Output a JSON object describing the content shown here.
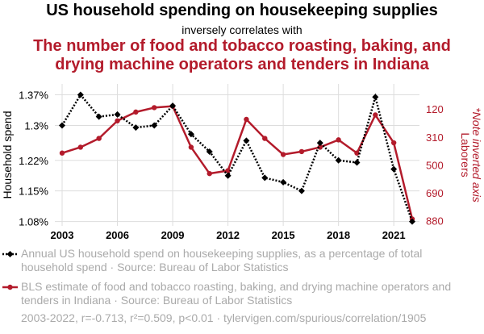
{
  "header": {
    "title": "US household spending on housekeeping supplies",
    "subtitle": "inversely correlates with",
    "title2_line1": "The number of food and tobacco roasting, baking, and",
    "title2_line2": "drying machine operators and tenders in Indiana"
  },
  "colors": {
    "series1": "#000000",
    "series2": "#b31b2b",
    "muted": "#aaaaaa",
    "grid": "#dddddd"
  },
  "chart_data": {
    "type": "line",
    "x": [
      2003,
      2004,
      2005,
      2006,
      2007,
      2008,
      2009,
      2010,
      2011,
      2012,
      2013,
      2014,
      2015,
      2016,
      2017,
      2018,
      2019,
      2020,
      2021,
      2022
    ],
    "series": [
      {
        "name": "Annual US household spend on housekeeping supplies, as a percentage of total household spend",
        "axis": "left",
        "style": "dotted-diamond",
        "values": [
          1.3,
          1.37,
          1.32,
          1.325,
          1.295,
          1.3,
          1.345,
          1.28,
          1.24,
          1.185,
          1.265,
          1.18,
          1.17,
          1.15,
          1.26,
          1.22,
          1.215,
          1.365,
          1.2,
          1.08
        ]
      },
      {
        "name": "BLS estimate of food and tobacco roasting, baking, and drying machine operators and tenders in Indiana",
        "axis": "right",
        "style": "solid-circle",
        "values": [
          420,
          380,
          320,
          200,
          140,
          110,
          100,
          380,
          560,
          540,
          190,
          320,
          430,
          410,
          380,
          330,
          420,
          160,
          350,
          870
        ]
      }
    ],
    "xlabel": "",
    "ylabel_left": "Household spend",
    "ylabel_right_line1": "Laborers",
    "ylabel_right_line2": "*Note inverted axis",
    "ylim_left": [
      1.07,
      1.395
    ],
    "ylim_right": [
      917,
      -52
    ],
    "y_inverted_right": true,
    "x_ticks": [
      "2003",
      "2006",
      "2009",
      "2012",
      "2015",
      "2018",
      "2021"
    ],
    "y_ticks_left": [
      {
        "value": 1.37,
        "label": "1.37%"
      },
      {
        "value": 1.3,
        "label": "1.3%"
      },
      {
        "value": 1.22,
        "label": "1.22%"
      },
      {
        "value": 1.15,
        "label": "1.15%"
      },
      {
        "value": 1.08,
        "label": "1.08%"
      }
    ],
    "y_ticks_right": [
      {
        "value": 120,
        "label": "120"
      },
      {
        "value": 310,
        "label": "310"
      },
      {
        "value": 500,
        "label": "500"
      },
      {
        "value": 690,
        "label": "690"
      },
      {
        "value": 880,
        "label": "880"
      }
    ],
    "grid": true
  },
  "legend": {
    "item1": "Annual US household spend on housekeeping supplies, as a percentage of total household spend · Source: Bureau of Labor Statistics",
    "item2": "BLS estimate of food and tobacco roasting, baking, and drying machine operators and tenders in Indiana · Source: Bureau of Labor Statistics"
  },
  "footer": "2003-2022, r=-0.713, r²=0.509, p<0.01 · tylervigen.com/spurious/correlation/1905"
}
